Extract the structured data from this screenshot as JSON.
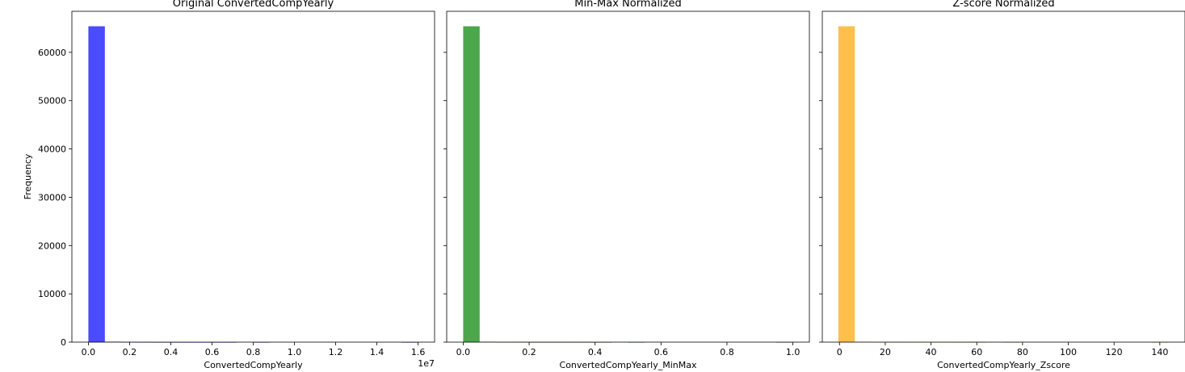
{
  "chart_data": [
    {
      "type": "bar",
      "title": "Original ConvertedCompYearly",
      "xlabel": "ConvertedCompYearly",
      "ylabel": "Frequency",
      "offset_text": "1e7",
      "xlim": [
        -0.08,
        1.68
      ],
      "ylim": [
        0,
        68500
      ],
      "xticks": [
        0.0,
        0.2,
        0.4,
        0.6,
        0.8,
        1.0,
        1.2,
        1.4,
        1.6
      ],
      "xtick_labels": [
        "0.0",
        "0.2",
        "0.4",
        "0.6",
        "0.8",
        "1.0",
        "1.2",
        "1.4",
        "1.6"
      ],
      "yticks": [
        0,
        10000,
        20000,
        30000,
        40000,
        50000,
        60000
      ],
      "ytick_labels": [
        "0",
        "10000",
        "20000",
        "30000",
        "40000",
        "50000",
        "60000"
      ],
      "bin_edges": [
        0.0,
        0.08,
        0.16,
        0.24,
        0.32,
        0.4,
        0.48,
        0.56,
        0.64,
        0.72,
        0.8,
        0.88,
        0.96,
        1.04,
        1.12,
        1.2,
        1.28,
        1.36,
        1.44,
        1.52,
        1.6
      ],
      "counts": [
        65400,
        90,
        20,
        10,
        5,
        3,
        2,
        1,
        1,
        0,
        1,
        0,
        0,
        0,
        0,
        0,
        0,
        0,
        0,
        1
      ],
      "color": "#4b4bff"
    },
    {
      "type": "bar",
      "title": "Min-Max Normalized",
      "xlabel": "ConvertedCompYearly_MinMax",
      "ylabel": "",
      "offset_text": "",
      "xlim": [
        -0.05,
        1.05
      ],
      "ylim": [
        0,
        68500
      ],
      "xticks": [
        0.0,
        0.2,
        0.4,
        0.6,
        0.8,
        1.0
      ],
      "xtick_labels": [
        "0.0",
        "0.2",
        "0.4",
        "0.6",
        "0.8",
        "1.0"
      ],
      "yticks": [
        0,
        10000,
        20000,
        30000,
        40000,
        50000,
        60000
      ],
      "ytick_labels": [],
      "bin_edges": [
        0.0,
        0.05,
        0.1,
        0.15,
        0.2,
        0.25,
        0.3,
        0.35,
        0.4,
        0.45,
        0.5,
        0.55,
        0.6,
        0.65,
        0.7,
        0.75,
        0.8,
        0.85,
        0.9,
        0.95,
        1.0
      ],
      "counts": [
        65400,
        90,
        20,
        10,
        5,
        3,
        2,
        1,
        1,
        0,
        1,
        0,
        0,
        0,
        0,
        0,
        0,
        0,
        0,
        1
      ],
      "color": "#4ca64c"
    },
    {
      "type": "bar",
      "title": "Z-score Normalized",
      "xlabel": "ConvertedCompYearly_Zscore",
      "ylabel": "",
      "offset_text": "",
      "xlim": [
        -7.5,
        151
      ],
      "ylim": [
        0,
        68500
      ],
      "xticks": [
        0,
        20,
        40,
        60,
        80,
        100,
        120,
        140
      ],
      "xtick_labels": [
        "0",
        "20",
        "40",
        "60",
        "80",
        "100",
        "120",
        "140"
      ],
      "yticks": [
        0,
        10000,
        20000,
        30000,
        40000,
        50000,
        60000
      ],
      "ytick_labels": [],
      "bin_edges": [
        -0.5,
        6.7,
        13.9,
        21.1,
        28.3,
        35.5,
        42.7,
        49.9,
        57.1,
        64.3,
        71.5,
        78.7,
        85.9,
        93.1,
        100.3,
        107.5,
        114.7,
        121.9,
        129.1,
        136.3,
        143.5
      ],
      "counts": [
        65400,
        90,
        20,
        10,
        5,
        3,
        2,
        1,
        1,
        0,
        1,
        0,
        0,
        0,
        0,
        0,
        0,
        0,
        0,
        1
      ],
      "color": "#ffbf4d"
    }
  ]
}
